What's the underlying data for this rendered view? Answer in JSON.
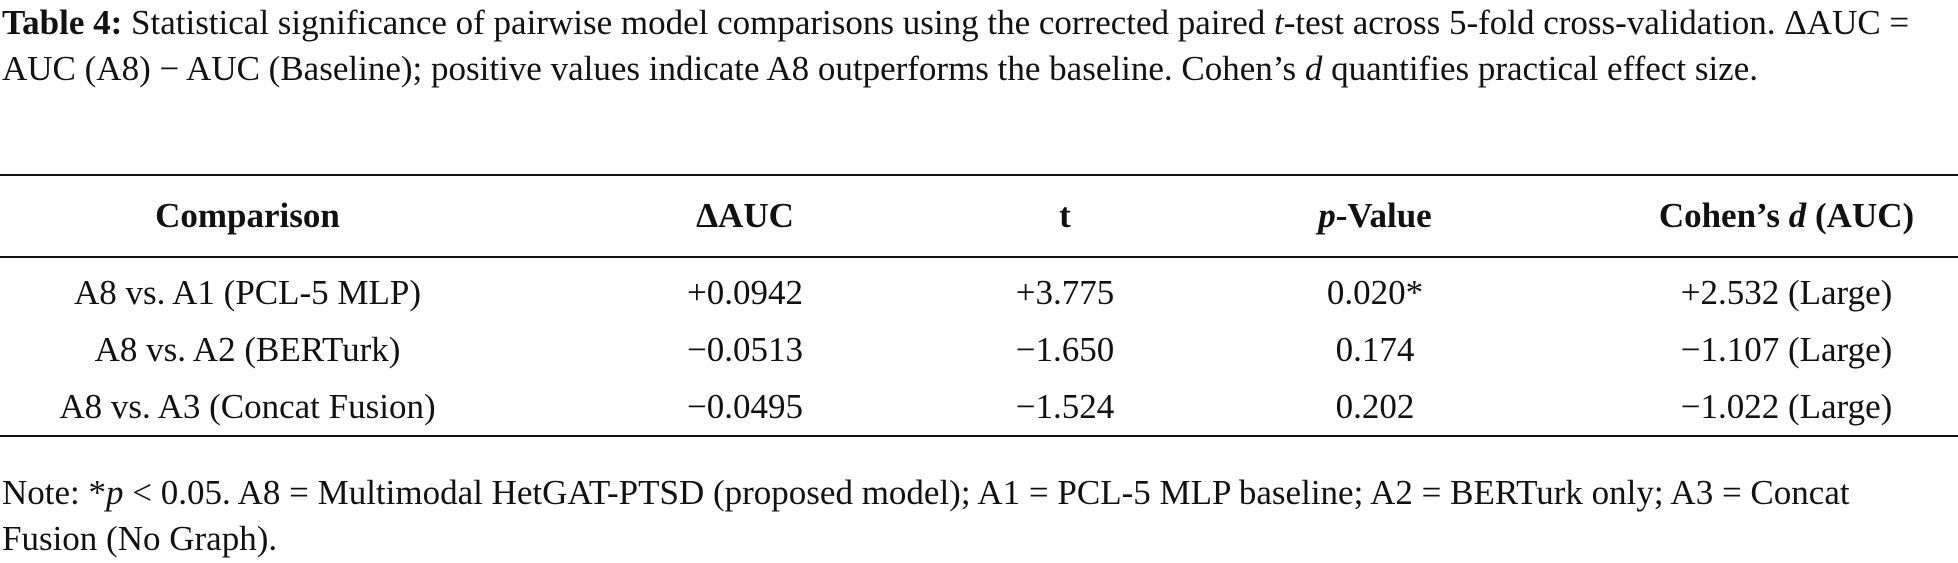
{
  "caption": {
    "label": "Table 4:",
    "parts": [
      "Statistical significance of pairwise model comparisons using the corrected paired ",
      "t",
      "-test across 5-fold cross-validation. ΔAUC = AUC (A8) − AUC (Baseline); positive values indicate A8 outperforms the baseline. Cohen’s ",
      "d",
      " quantifies practical effect size."
    ]
  },
  "table": {
    "header": [
      "Comparison",
      "ΔAUC",
      "t",
      [
        "p",
        "-Value"
      ],
      [
        "Cohen’s ",
        "d",
        " (AUC)"
      ]
    ],
    "rows": [
      [
        "A8 vs. A1 (PCL-5 MLP)",
        "+0.0942",
        "+3.775",
        "0.020*",
        "+2.532 (Large)"
      ],
      [
        "A8 vs. A2 (BERTurk)",
        "−0.0513",
        "−1.650",
        "0.174",
        "−1.107 (Large)"
      ],
      [
        "A8 vs. A3 (Concat Fusion)",
        "−0.0495",
        "−1.524",
        "0.202",
        "−1.022 (Large)"
      ]
    ]
  },
  "note": [
    "Note: *",
    "p",
    " < 0.05. A8 = Multimodal HetGAT-PTSD (proposed model); A1 = PCL-5 MLP baseline; A2 = BERTurk only; A3 = Concat Fusion (No Graph)."
  ]
}
